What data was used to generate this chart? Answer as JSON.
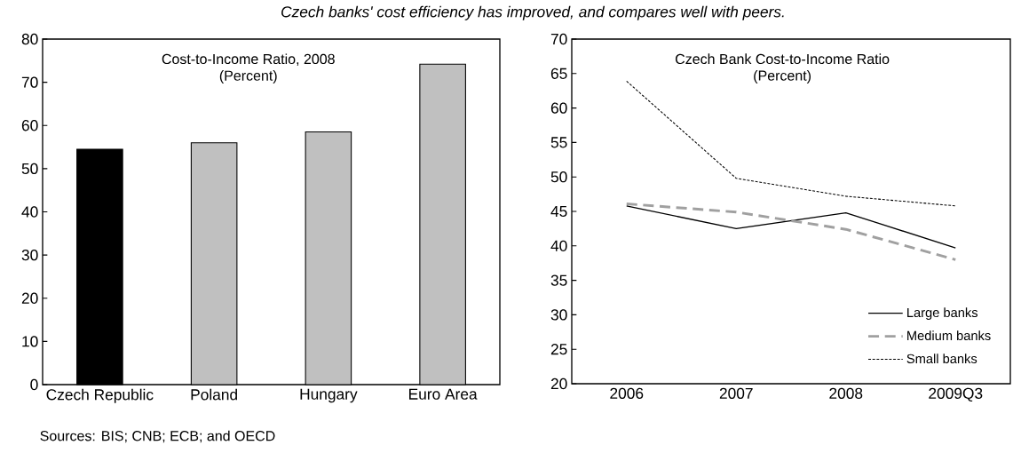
{
  "chart_data": [
    {
      "type": "bar",
      "title": "Cost-to-Income Ratio, 2008",
      "subtitle": "(Percent)",
      "annotations": [
        "Czech banks' cost efficiency has improved, and compares well with peers.",
        "Sources: BIS; CNB; ECB; and OECD"
      ],
      "categories": [
        "Czech Republic",
        "Poland",
        "Hungary",
        "Euro Area"
      ],
      "values": [
        54.5,
        56,
        58.5,
        74.2
      ],
      "colors": [
        "#000000",
        "#c0c0c0",
        "#c0c0c0",
        "#c0c0c0"
      ],
      "ylim": [
        0,
        80
      ],
      "yticks": [
        0,
        10,
        20,
        30,
        40,
        50,
        60,
        70,
        80
      ],
      "grid": false,
      "legend": false
    },
    {
      "type": "line",
      "title": "Czech Bank Cost-to-Income Ratio",
      "subtitle": "(Percent)",
      "categories": [
        "2006",
        "2007",
        "2008",
        "2009Q3"
      ],
      "series": [
        {
          "name": "Large banks",
          "color": "#000000",
          "line_style": "solid",
          "values": [
            45.8,
            42.5,
            44.8,
            39.7
          ]
        },
        {
          "name": "Medium banks",
          "color": "#a0a0a0",
          "line_style": "dashed",
          "values": [
            46.1,
            44.9,
            42.4,
            38.0
          ]
        },
        {
          "name": "Small banks",
          "color": "#000000",
          "line_style": "dotted",
          "values": [
            63.9,
            49.8,
            47.2,
            45.8
          ]
        }
      ],
      "ylim": [
        20,
        70
      ],
      "yticks": [
        20,
        25,
        30,
        35,
        40,
        45,
        50,
        55,
        60,
        65,
        70
      ],
      "grid": false,
      "legend": "bottom right",
      "marker": "none"
    }
  ]
}
